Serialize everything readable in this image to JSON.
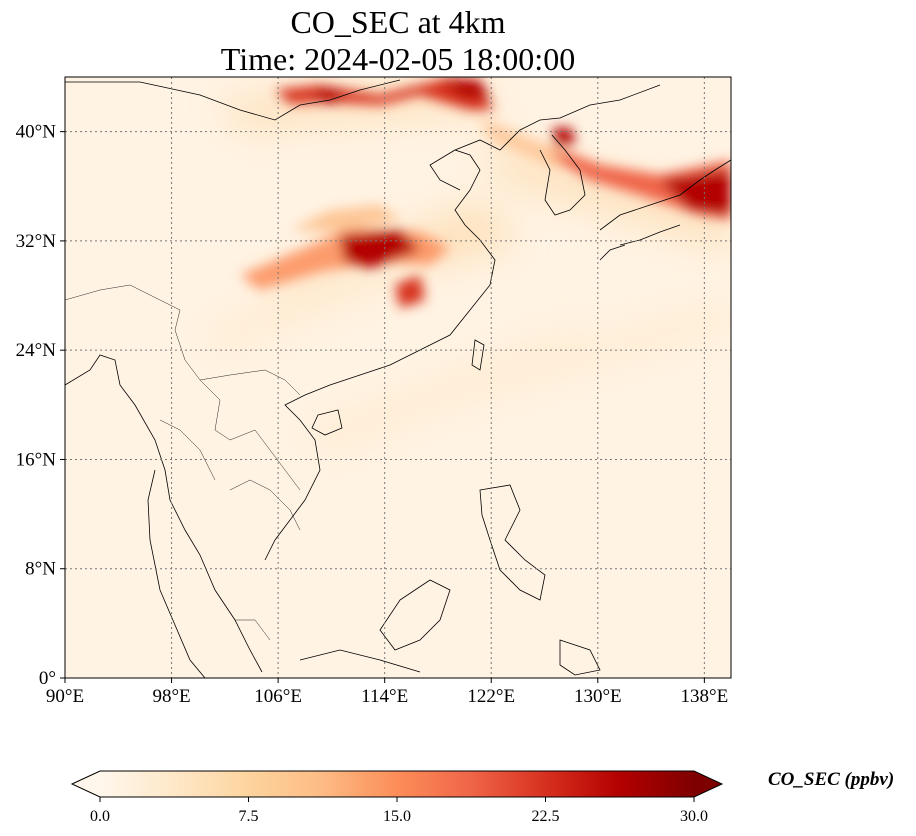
{
  "title": {
    "line1": "CO_SEC at 4km",
    "line2": "Time: 2024-02-05 18:00:00"
  },
  "map": {
    "lon_range": [
      90,
      140
    ],
    "lat_range": [
      0,
      44
    ],
    "lon_ticks": [
      {
        "value": 90,
        "label": "90°E"
      },
      {
        "value": 98,
        "label": "98°E"
      },
      {
        "value": 106,
        "label": "106°E"
      },
      {
        "value": 114,
        "label": "114°E"
      },
      {
        "value": 122,
        "label": "122°E"
      },
      {
        "value": 130,
        "label": "130°E"
      },
      {
        "value": 138,
        "label": "138°E"
      }
    ],
    "lat_ticks": [
      {
        "value": 0,
        "label": "0°"
      },
      {
        "value": 8,
        "label": "8°N"
      },
      {
        "value": 16,
        "label": "16°N"
      },
      {
        "value": 24,
        "label": "24°N"
      },
      {
        "value": 32,
        "label": "32°N"
      },
      {
        "value": 40,
        "label": "40°N"
      }
    ],
    "gridlines": true,
    "colormap": "OrRd",
    "background_color": "#fff3e3",
    "plumes": [
      {
        "lon": 112.5,
        "lat": 32.5,
        "intensity": "high"
      },
      {
        "lon": 116.5,
        "lat": 28.8,
        "intensity": "high"
      },
      {
        "lon": 104,
        "lat": 31,
        "intensity": "medium"
      },
      {
        "lon": 108,
        "lat": 43,
        "intensity": "high"
      },
      {
        "lon": 117.5,
        "lat": 43.5,
        "intensity": "high"
      },
      {
        "lon": 126.5,
        "lat": 40.5,
        "intensity": "high"
      },
      {
        "lon": 136.5,
        "lat": 35.5,
        "intensity": "high"
      }
    ]
  },
  "colorbar": {
    "label": "CO_SEC (ppbv)",
    "min": 0.0,
    "max": 30.0,
    "extend": "both",
    "ticks": [
      {
        "value": 0.0,
        "label": "0.0"
      },
      {
        "value": 7.5,
        "label": "7.5"
      },
      {
        "value": 15.0,
        "label": "15.0"
      },
      {
        "value": 22.5,
        "label": "22.5"
      },
      {
        "value": 30.0,
        "label": "30.0"
      }
    ],
    "colors": [
      "#fff7ec",
      "#fee8c8",
      "#fdd49e",
      "#fdbb84",
      "#fc8d59",
      "#ef6548",
      "#d7301f",
      "#b30000",
      "#7f0000"
    ]
  }
}
